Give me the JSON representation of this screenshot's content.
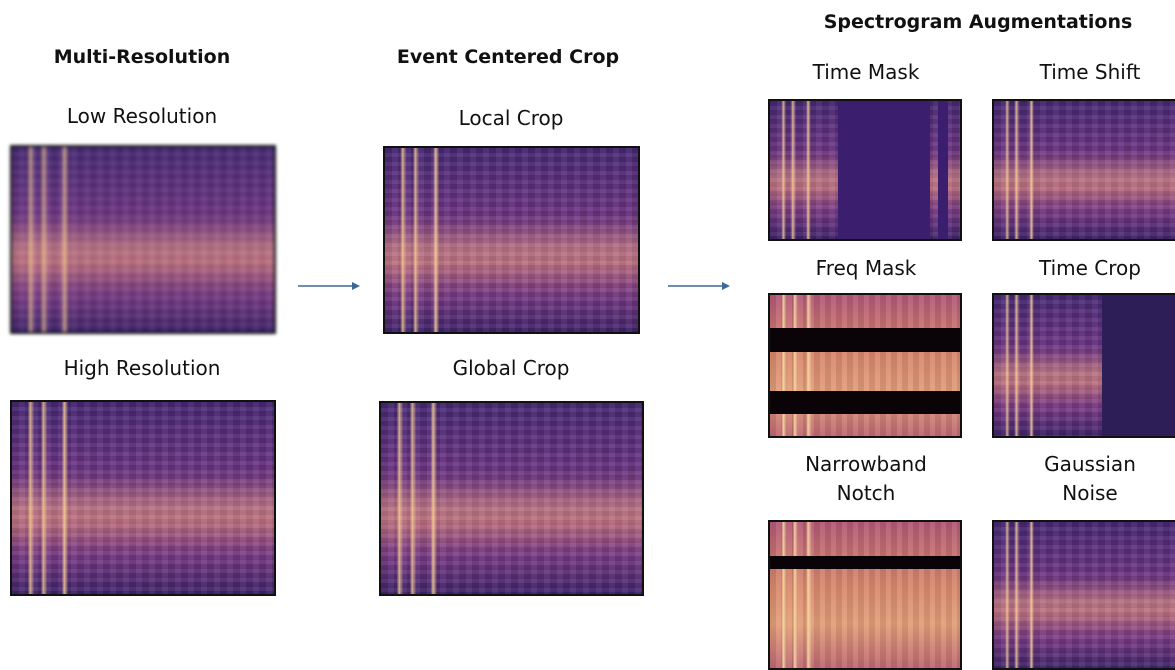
{
  "multi_resolution": {
    "title": "Multi-Resolution",
    "panels": [
      "Low Resolution",
      "High Resolution"
    ]
  },
  "event_centered_crop": {
    "title": "Event Centered Crop",
    "panels": [
      "Local Crop",
      "Global Crop"
    ]
  },
  "spectrogram_augmentations": {
    "title": "Spectrogram Augmentations",
    "panels": [
      "Time Mask",
      "Time Shift",
      "Freq Mask",
      "Time Crop",
      "Narrowband Notch",
      "Gaussian Noise"
    ]
  }
}
